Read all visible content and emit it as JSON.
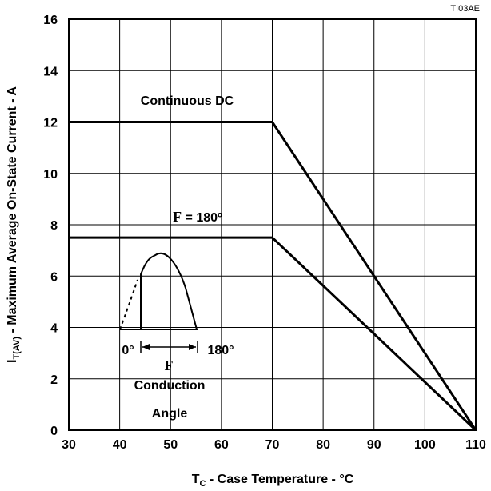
{
  "figure_id": "TI03AE",
  "chart_data": {
    "type": "line",
    "xlabel": {
      "main": "T",
      "sub": "C",
      "rest": " - Case Temperature - °C"
    },
    "ylabel": {
      "main": "I",
      "sub": "T(AV)",
      "rest": " - Maximum Average On-State Current - A"
    },
    "xlim": [
      30,
      110
    ],
    "ylim": [
      0,
      16
    ],
    "xticks": [
      30,
      40,
      50,
      60,
      70,
      80,
      90,
      100,
      110
    ],
    "yticks": [
      0,
      2,
      4,
      6,
      8,
      10,
      12,
      14,
      16
    ],
    "grid": true,
    "series": [
      {
        "name": "Continuous DC",
        "x": [
          30,
          70,
          110
        ],
        "y": [
          12,
          12,
          0
        ]
      },
      {
        "name": "180º",
        "x": [
          30,
          70,
          110
        ],
        "y": [
          7.5,
          7.5,
          0
        ]
      }
    ],
    "annotations": {
      "dc_label": "Continuous DC",
      "phi_symbol": "F",
      "phi_value": " = 180º",
      "angle_start": "0°",
      "angle_end": "180°",
      "angle_symbol": "F",
      "conduction": "Conduction",
      "angle": "Angle"
    }
  }
}
